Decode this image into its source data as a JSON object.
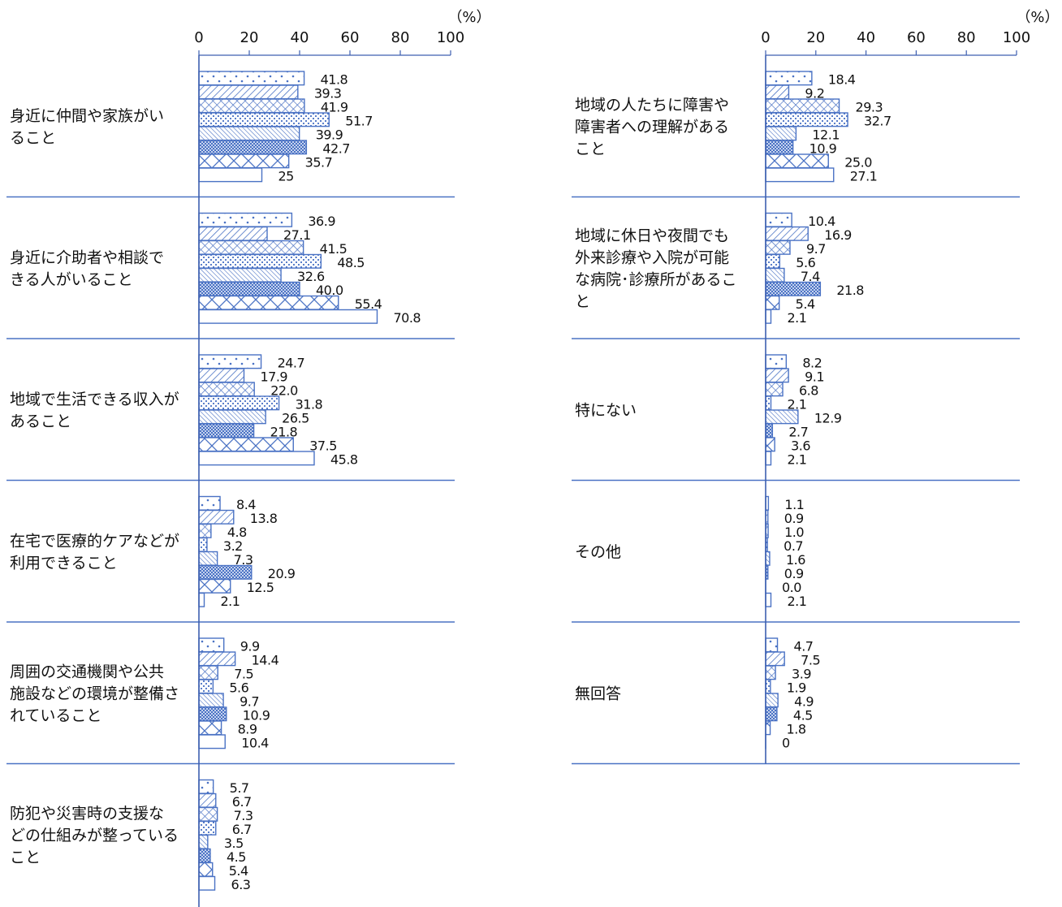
{
  "chart_data": [
    {
      "type": "bar",
      "unit": "（%）",
      "xlim": [
        0,
        100
      ],
      "ticks": [
        "0",
        "20",
        "40",
        "60",
        "80",
        "100"
      ],
      "categories": [
        {
          "label": [
            "身近に仲間や家族がい",
            "ること"
          ],
          "values": [
            41.8,
            39.3,
            41.9,
            51.7,
            39.9,
            42.7,
            35.7,
            25
          ],
          "labels": [
            "41.8",
            "39.3",
            "41.9",
            "51.7",
            "39.9",
            "42.7",
            "35.7",
            "25"
          ]
        },
        {
          "label": [
            "身近に介助者や相談で",
            "きる人がいること"
          ],
          "values": [
            36.9,
            27.1,
            41.5,
            48.5,
            32.6,
            40.0,
            55.4,
            70.8
          ],
          "labels": [
            "36.9",
            "27.1",
            "41.5",
            "48.5",
            "32.6",
            "40.0",
            "55.4",
            "70.8"
          ]
        },
        {
          "label": [
            "地域で生活できる収入が",
            "あること"
          ],
          "values": [
            24.7,
            17.9,
            22.0,
            31.8,
            26.5,
            21.8,
            37.5,
            45.8
          ],
          "labels": [
            "24.7",
            "17.9",
            "22.0",
            "31.8",
            "26.5",
            "21.8",
            "37.5",
            "45.8"
          ]
        },
        {
          "label": [
            "在宅で医療的ケアなどが",
            "利用できること"
          ],
          "values": [
            8.4,
            13.8,
            4.8,
            3.2,
            7.3,
            20.9,
            12.5,
            2.1
          ],
          "labels": [
            "8.4",
            "13.8",
            "4.8",
            "3.2",
            "7.3",
            "20.9",
            "12.5",
            "2.1"
          ]
        },
        {
          "label": [
            "周囲の交通機関や公共",
            "施設などの環境が整備さ",
            "れていること"
          ],
          "values": [
            9.9,
            14.4,
            7.5,
            5.6,
            9.7,
            10.9,
            8.9,
            10.4
          ],
          "labels": [
            "9.9",
            "14.4",
            "7.5",
            "5.6",
            "9.7",
            "10.9",
            "8.9",
            "10.4"
          ]
        },
        {
          "label": [
            "防犯や災害時の支援な",
            "どの仕組みが整っている",
            "こと"
          ],
          "values": [
            5.7,
            6.7,
            7.3,
            6.7,
            3.5,
            4.5,
            5.4,
            6.3
          ],
          "labels": [
            "5.7",
            "6.7",
            "7.3",
            "6.7",
            "3.5",
            "4.5",
            "5.4",
            "6.3"
          ]
        }
      ]
    },
    {
      "type": "bar",
      "unit": "（%）",
      "xlim": [
        0,
        100
      ],
      "ticks": [
        "0",
        "20",
        "40",
        "60",
        "80",
        "100"
      ],
      "categories": [
        {
          "label": [
            "地域の人たちに障害や",
            "障害者への理解がある",
            "こと"
          ],
          "values": [
            18.4,
            9.2,
            29.3,
            32.7,
            12.1,
            10.9,
            25.0,
            27.1
          ],
          "labels": [
            "18.4",
            "9.2",
            "29.3",
            "32.7",
            "12.1",
            "10.9",
            "25.0",
            "27.1"
          ]
        },
        {
          "label": [
            "地域に休日や夜間でも",
            "外来診療や入院が可能",
            "な病院･診療所があるこ",
            "と"
          ],
          "values": [
            10.4,
            16.9,
            9.7,
            5.6,
            7.4,
            21.8,
            5.4,
            2.1
          ],
          "labels": [
            "10.4",
            "16.9",
            "9.7",
            "5.6",
            "7.4",
            "21.8",
            "5.4",
            "2.1"
          ]
        },
        {
          "label": [
            "特にない"
          ],
          "values": [
            8.2,
            9.1,
            6.8,
            2.1,
            12.9,
            2.7,
            3.6,
            2.1
          ],
          "labels": [
            "8.2",
            "9.1",
            "6.8",
            "2.1",
            "12.9",
            "2.7",
            "3.6",
            "2.1"
          ]
        },
        {
          "label": [
            "その他"
          ],
          "values": [
            1.1,
            0.9,
            1.0,
            0.7,
            1.6,
            0.9,
            0.0,
            2.1
          ],
          "labels": [
            "1.1",
            "0.9",
            "1.0",
            "0.7",
            "1.6",
            "0.9",
            "0.0",
            "2.1"
          ]
        },
        {
          "label": [
            "無回答"
          ],
          "values": [
            4.7,
            7.5,
            3.9,
            1.9,
            4.9,
            4.5,
            1.8,
            0
          ],
          "labels": [
            "4.7",
            "7.5",
            "3.9",
            "1.9",
            "4.9",
            "4.5",
            "1.8",
            "0"
          ]
        }
      ]
    }
  ],
  "style": {
    "stroke": "#4a72c4",
    "axis": "#3d5fb0",
    "series_patterns": [
      "dots-sparse",
      "diagonal",
      "crosshatch",
      "dots-dense",
      "diagonal-fine",
      "mesh-dense",
      "large-cross",
      "plain"
    ]
  }
}
